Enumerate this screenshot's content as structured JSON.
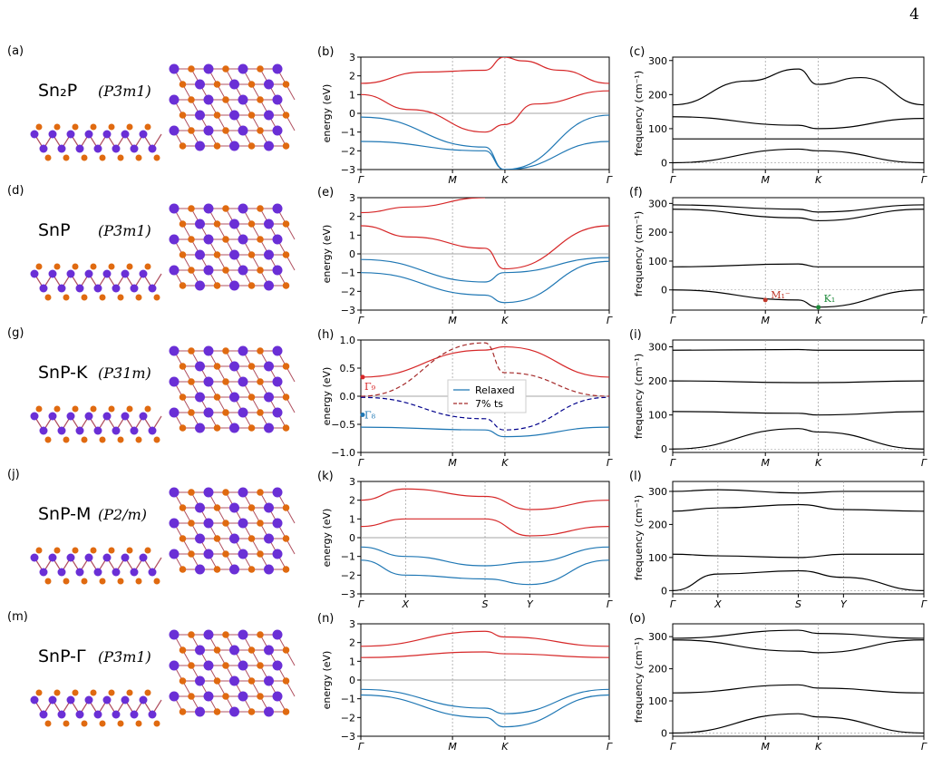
{
  "page_number": "4",
  "colors": {
    "conduction": "#d62728",
    "valence": "#1f77b4",
    "strain_cb": "#a52a2a",
    "strain_vb": "#00008b",
    "phonon": "#000000",
    "sn_atom": "#6a2fd6",
    "p_atom": "#e06a10",
    "bond": "#b05060"
  },
  "icons": [
    "crystal-structure-icon"
  ],
  "structures": [
    {
      "label": "(a)",
      "name": "Sn₂P",
      "space_group": "(P3̄m1)"
    },
    {
      "label": "(d)",
      "name": "SnP",
      "space_group": "(P3̄m1)"
    },
    {
      "label": "(g)",
      "name": "SnP-K",
      "space_group": "(P3̄1m)"
    },
    {
      "label": "(j)",
      "name": "SnP-M",
      "space_group": "(P2/m)"
    },
    {
      "label": "(m)",
      "name": "SnP-Γ",
      "space_group": "(P3̄m1)"
    }
  ],
  "bands": [
    {
      "label": "(b)",
      "ylabel": "energy (eV)",
      "yticks": [
        "3",
        "2",
        "1",
        "0",
        "−1",
        "−2",
        "−3"
      ],
      "kpoints": [
        "Γ",
        "M",
        "K",
        "Γ"
      ]
    },
    {
      "label": "(e)",
      "ylabel": "energy (eV)",
      "yticks": [
        "3",
        "2",
        "1",
        "0",
        "−1",
        "−2",
        "−3"
      ],
      "kpoints": [
        "Γ",
        "M",
        "K",
        "Γ"
      ]
    },
    {
      "label": "(h)",
      "ylabel": "energy (eV)",
      "yticks": [
        "1.0",
        "0.5",
        "0.0",
        "−0.5",
        "−1.0"
      ],
      "kpoints": [
        "Γ",
        "M",
        "K",
        "Γ"
      ],
      "legend": [
        "Relaxed",
        "7% ts"
      ],
      "annotations": [
        "Γ₉",
        "Γ₈"
      ]
    },
    {
      "label": "(k)",
      "ylabel": "energy (eV)",
      "yticks": [
        "3",
        "2",
        "1",
        "0",
        "−1",
        "−2",
        "−3"
      ],
      "kpoints": [
        "Γ",
        "X",
        "S",
        "Y",
        "Γ"
      ]
    },
    {
      "label": "(n)",
      "ylabel": "energy (eV)",
      "yticks": [
        "3",
        "2",
        "1",
        "0",
        "−1",
        "−2",
        "−3"
      ],
      "kpoints": [
        "Γ",
        "M",
        "K",
        "Γ"
      ]
    }
  ],
  "phonons": [
    {
      "label": "(c)",
      "ylabel": "frequency (cm⁻¹)",
      "yticks": [
        "300",
        "200",
        "100",
        "0"
      ],
      "kpoints": [
        "Γ",
        "M",
        "K",
        "Γ"
      ]
    },
    {
      "label": "(f)",
      "ylabel": "frequency (cm⁻¹)",
      "yticks": [
        "300",
        "200",
        "100",
        "0"
      ],
      "kpoints": [
        "Γ",
        "M",
        "K",
        "Γ"
      ],
      "annotations": [
        "M₁⁻",
        "K₁"
      ]
    },
    {
      "label": "(i)",
      "ylabel": "frequency (cm⁻¹)",
      "yticks": [
        "300",
        "200",
        "100",
        "0"
      ],
      "kpoints": [
        "Γ",
        "M",
        "K",
        "Γ"
      ]
    },
    {
      "label": "(l)",
      "ylabel": "frequency (cm⁻¹)",
      "yticks": [
        "300",
        "200",
        "100",
        "0"
      ],
      "kpoints": [
        "Γ",
        "X",
        "S",
        "Y",
        "Γ"
      ]
    },
    {
      "label": "(o)",
      "ylabel": "frequency (cm⁻¹)",
      "yticks": [
        "300",
        "200",
        "100",
        "0"
      ],
      "kpoints": [
        "Γ",
        "M",
        "K",
        "Γ"
      ]
    }
  ],
  "chart_data": [
    {
      "type": "line",
      "title": "",
      "label": "(b)",
      "xlabel": "",
      "ylabel": "energy (eV)",
      "ylim": [
        -3,
        3
      ],
      "xticks": [
        "Γ",
        "M",
        "K",
        "Γ"
      ],
      "series": [
        {
          "x": [
            0,
            0.25,
            0.5,
            0.577,
            0.65,
            0.8,
            1
          ],
          "y": [
            1.6,
            2.2,
            2.3,
            3.0,
            2.8,
            2.3,
            1.6
          ]
        },
        {
          "x": [
            0,
            0.2,
            0.5,
            0.577,
            0.7,
            1
          ],
          "y": [
            1.0,
            0.2,
            -1.0,
            -0.6,
            0.5,
            1.2
          ]
        },
        {
          "x": [
            0,
            0.5,
            0.577,
            1
          ],
          "y": [
            -0.2,
            -1.8,
            -3.0,
            -0.1
          ]
        },
        {
          "x": [
            0,
            0.5,
            0.577,
            1
          ],
          "y": [
            -1.5,
            -2.0,
            -3.0,
            -1.5
          ]
        }
      ]
    },
    {
      "type": "line",
      "title": "",
      "label": "(e)",
      "xlabel": "",
      "ylabel": "energy (eV)",
      "ylim": [
        -3,
        3
      ],
      "xticks": [
        "Γ",
        "M",
        "K",
        "Γ"
      ],
      "series": [
        {
          "x": [
            0,
            0.2,
            0.5,
            0.577,
            1
          ],
          "y": [
            1.5,
            0.9,
            0.3,
            -0.8,
            1.5
          ]
        },
        {
          "x": [
            0,
            0.2,
            0.5
          ],
          "y": [
            2.2,
            2.5,
            3.0
          ]
        },
        {
          "x": [
            0,
            0.5,
            0.577,
            1
          ],
          "y": [
            -0.3,
            -1.5,
            -1.0,
            -0.2
          ]
        },
        {
          "x": [
            0,
            0.5,
            0.577,
            1
          ],
          "y": [
            -1.0,
            -2.2,
            -2.6,
            -0.4
          ]
        }
      ]
    },
    {
      "type": "line",
      "title": "",
      "label": "(h)",
      "xlabel": "",
      "ylabel": "energy (eV)",
      "ylim": [
        -1,
        1
      ],
      "xticks": [
        "Γ",
        "M",
        "K",
        "Γ"
      ],
      "series": [
        {
          "name": "Relaxed",
          "x": [
            0,
            0.5,
            0.577,
            1
          ],
          "y": [
            0.34,
            0.82,
            0.88,
            0.34
          ]
        },
        {
          "name": "Relaxed",
          "x": [
            0,
            0.5,
            0.577,
            1
          ],
          "y": [
            -0.55,
            -0.6,
            -0.72,
            -0.55
          ]
        },
        {
          "name": "7% ts",
          "x": [
            0,
            0.5,
            0.577,
            1
          ],
          "y": [
            0.0,
            0.95,
            0.42,
            0.0
          ]
        },
        {
          "name": "7% ts",
          "x": [
            0,
            0.5,
            0.577,
            1
          ],
          "y": [
            -0.02,
            -0.4,
            -0.6,
            -0.02
          ]
        }
      ]
    },
    {
      "type": "line",
      "title": "",
      "label": "(k)",
      "xlabel": "",
      "ylabel": "energy (eV)",
      "ylim": [
        -3,
        3
      ],
      "xticks": [
        "Γ",
        "X",
        "S",
        "Y",
        "Γ"
      ],
      "series": [
        {
          "x": [
            0,
            0.18,
            0.5,
            0.68,
            1
          ],
          "y": [
            0.6,
            1.0,
            1.0,
            0.1,
            0.6
          ]
        },
        {
          "x": [
            0,
            0.18,
            0.5,
            0.68,
            1
          ],
          "y": [
            2.0,
            2.6,
            2.2,
            1.5,
            2.0
          ]
        },
        {
          "x": [
            0,
            0.18,
            0.5,
            0.68,
            1
          ],
          "y": [
            -0.5,
            -1.0,
            -1.5,
            -1.3,
            -0.5
          ]
        },
        {
          "x": [
            0,
            0.18,
            0.5,
            0.68,
            1
          ],
          "y": [
            -1.2,
            -2.0,
            -2.2,
            -2.5,
            -1.2
          ]
        }
      ]
    },
    {
      "type": "line",
      "title": "",
      "label": "(n)",
      "xlabel": "",
      "ylabel": "energy (eV)",
      "ylim": [
        -3,
        3
      ],
      "xticks": [
        "Γ",
        "M",
        "K",
        "Γ"
      ],
      "series": [
        {
          "x": [
            0,
            0.5,
            0.577,
            1
          ],
          "y": [
            1.2,
            1.5,
            1.4,
            1.2
          ]
        },
        {
          "x": [
            0,
            0.5,
            0.577,
            1
          ],
          "y": [
            1.8,
            2.6,
            2.3,
            1.8
          ]
        },
        {
          "x": [
            0,
            0.5,
            0.577,
            1
          ],
          "y": [
            -0.5,
            -1.5,
            -1.8,
            -0.5
          ]
        },
        {
          "x": [
            0,
            0.5,
            0.577,
            1
          ],
          "y": [
            -0.8,
            -2.0,
            -2.5,
            -0.8
          ]
        }
      ]
    },
    {
      "type": "line",
      "title": "",
      "label": "(c)",
      "xlabel": "",
      "ylabel": "frequency (cm⁻¹)",
      "ylim": [
        -20,
        310
      ],
      "xticks": [
        "Γ",
        "M",
        "K",
        "Γ"
      ],
      "series": [
        {
          "x": [
            0,
            0.3,
            0.5,
            0.577,
            0.75,
            1
          ],
          "y": [
            170,
            240,
            275,
            230,
            250,
            170
          ]
        },
        {
          "x": [
            0,
            0.5,
            0.577,
            1
          ],
          "y": [
            135,
            110,
            100,
            130
          ]
        },
        {
          "x": [
            0,
            0.5,
            0.577,
            1
          ],
          "y": [
            70,
            70,
            70,
            70
          ]
        },
        {
          "x": [
            0,
            0.5,
            0.577,
            1
          ],
          "y": [
            0,
            40,
            35,
            0
          ]
        }
      ]
    },
    {
      "type": "line",
      "title": "",
      "label": "(f)",
      "xlabel": "",
      "ylabel": "frequency (cm⁻¹)",
      "ylim": [
        -70,
        320
      ],
      "xticks": [
        "Γ",
        "M",
        "K",
        "Γ"
      ],
      "series": [
        {
          "x": [
            0,
            0.5,
            0.577,
            1
          ],
          "y": [
            295,
            280,
            270,
            295
          ]
        },
        {
          "x": [
            0,
            0.5,
            0.577,
            1
          ],
          "y": [
            280,
            250,
            240,
            280
          ]
        },
        {
          "x": [
            0,
            0.5,
            0.577,
            1
          ],
          "y": [
            80,
            90,
            80,
            80
          ]
        },
        {
          "x": [
            0,
            0.5,
            0.577,
            1
          ],
          "y": [
            0,
            -35,
            -60,
            0
          ]
        }
      ]
    },
    {
      "type": "line",
      "title": "",
      "label": "(i)",
      "xlabel": "",
      "ylabel": "frequency (cm⁻¹)",
      "ylim": [
        -10,
        320
      ],
      "xticks": [
        "Γ",
        "M",
        "K",
        "Γ"
      ],
      "series": [
        {
          "x": [
            0,
            0.5,
            0.577,
            1
          ],
          "y": [
            290,
            292,
            290,
            290
          ]
        },
        {
          "x": [
            0,
            0.5,
            0.577,
            1
          ],
          "y": [
            200,
            195,
            195,
            200
          ]
        },
        {
          "x": [
            0,
            0.5,
            0.577,
            1
          ],
          "y": [
            110,
            105,
            100,
            110
          ]
        },
        {
          "x": [
            0,
            0.5,
            0.577,
            1
          ],
          "y": [
            0,
            60,
            50,
            0
          ]
        }
      ]
    },
    {
      "type": "line",
      "title": "",
      "label": "(l)",
      "xlabel": "",
      "ylabel": "frequency (cm⁻¹)",
      "ylim": [
        -10,
        330
      ],
      "xticks": [
        "Γ",
        "X",
        "S",
        "Y",
        "Γ"
      ],
      "series": [
        {
          "x": [
            0,
            0.18,
            0.5,
            0.68,
            1
          ],
          "y": [
            300,
            305,
            295,
            300,
            300
          ]
        },
        {
          "x": [
            0,
            0.18,
            0.5,
            0.68,
            1
          ],
          "y": [
            240,
            250,
            260,
            245,
            240
          ]
        },
        {
          "x": [
            0,
            0.18,
            0.5,
            0.68,
            1
          ],
          "y": [
            110,
            105,
            100,
            110,
            110
          ]
        },
        {
          "x": [
            0,
            0.18,
            0.5,
            0.68,
            1
          ],
          "y": [
            0,
            50,
            60,
            40,
            0
          ]
        }
      ]
    },
    {
      "type": "line",
      "title": "",
      "label": "(o)",
      "xlabel": "",
      "ylabel": "frequency (cm⁻¹)",
      "ylim": [
        -10,
        340
      ],
      "xticks": [
        "Γ",
        "M",
        "K",
        "Γ"
      ],
      "series": [
        {
          "x": [
            0,
            0.5,
            0.577,
            1
          ],
          "y": [
            295,
            320,
            310,
            295
          ]
        },
        {
          "x": [
            0,
            0.5,
            0.577,
            1
          ],
          "y": [
            290,
            255,
            250,
            290
          ]
        },
        {
          "x": [
            0,
            0.5,
            0.577,
            1
          ],
          "y": [
            125,
            150,
            140,
            125
          ]
        },
        {
          "x": [
            0,
            0.5,
            0.577,
            1
          ],
          "y": [
            0,
            60,
            50,
            0
          ]
        }
      ]
    }
  ]
}
